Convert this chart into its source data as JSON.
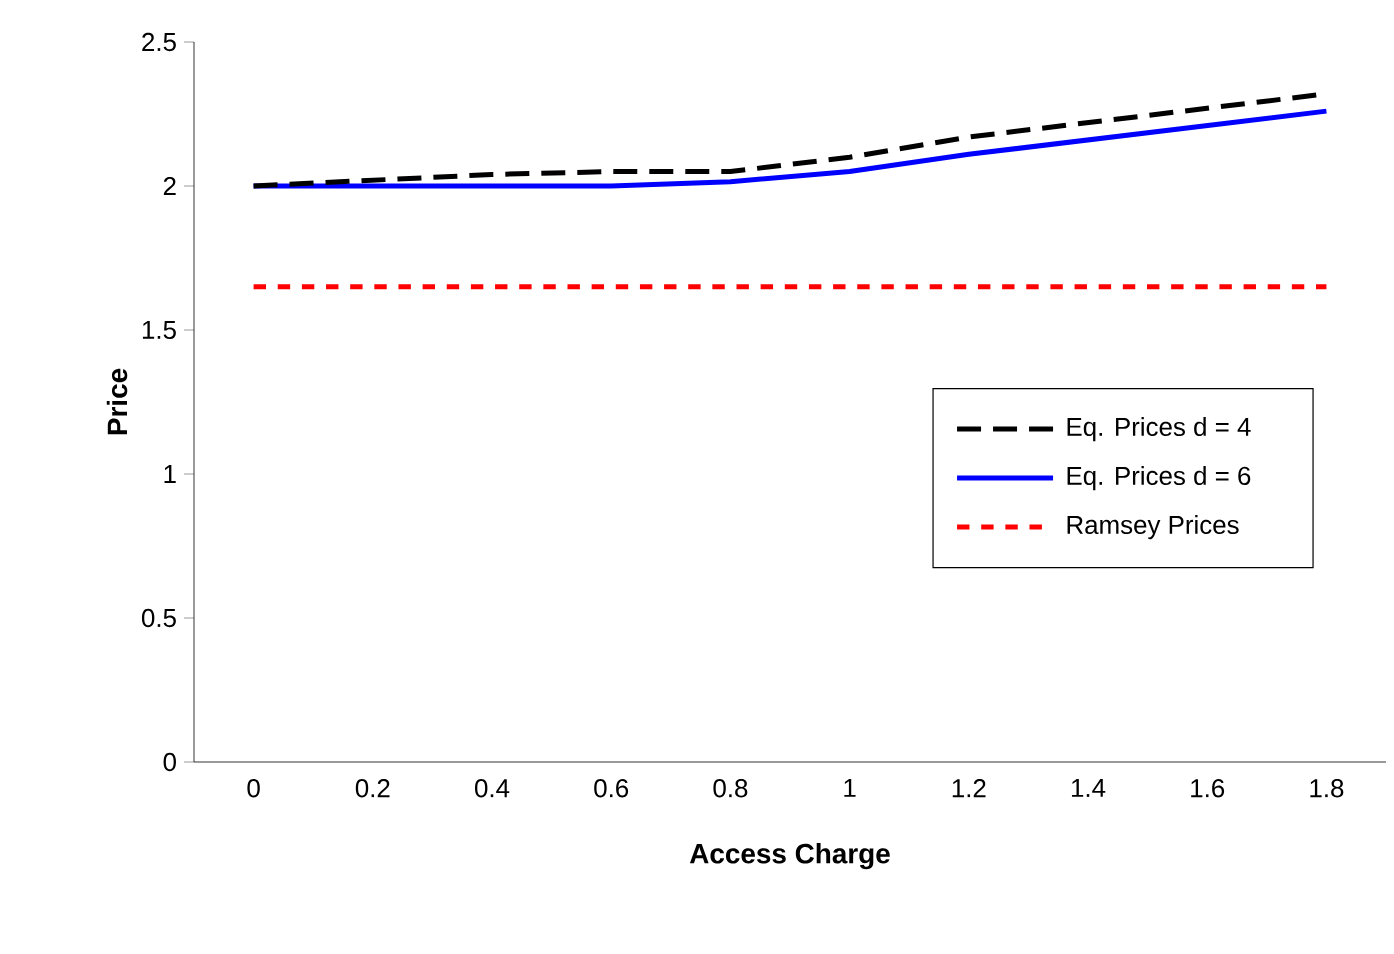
{
  "chart_data": {
    "type": "line",
    "xlabel": "Access Charge",
    "ylabel": "Price",
    "categories": [
      "0",
      "0.2",
      "0.4",
      "0.6",
      "0.8",
      "1",
      "1.2",
      "1.4",
      "1.6",
      "1.8"
    ],
    "series": [
      {
        "name": "Eq. Prices  d = 4",
        "color": "#000000",
        "line_style": "dashed",
        "values": [
          2.0,
          2.02,
          2.04,
          2.05,
          2.05,
          2.1,
          2.17,
          2.22,
          2.27,
          2.32
        ]
      },
      {
        "name": "Eq. Prices  d = 6",
        "color": "#0000ff",
        "line_style": "solid",
        "values": [
          2.0,
          2.0,
          2.0,
          2.0,
          2.015,
          2.05,
          2.11,
          2.16,
          2.21,
          2.26
        ]
      },
      {
        "name": "Ramsey Prices",
        "color": "#ff0000",
        "line_style": "dotted",
        "values": [
          1.65,
          1.65,
          1.65,
          1.65,
          1.65,
          1.65,
          1.65,
          1.65,
          1.65,
          1.65
        ]
      }
    ],
    "ylim": [
      0,
      2.5
    ],
    "yticks": [
      0,
      0.5,
      1,
      1.5,
      2,
      2.5
    ],
    "grid": false,
    "legend": "right",
    "marker": "none"
  }
}
